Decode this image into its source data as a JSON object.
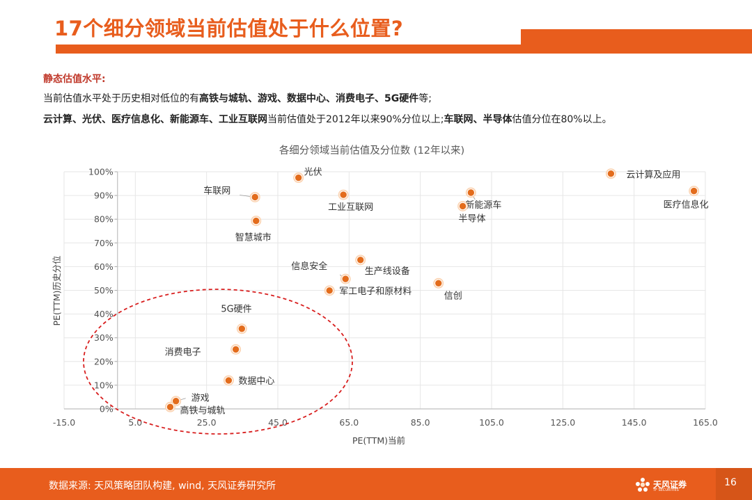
{
  "header": {
    "title": "17个细分领域当前估值处于什么位置?"
  },
  "summary": {
    "section_label": "静态估值水平:",
    "line1": [
      {
        "text": "当前估值水平处于历史相对低位的有",
        "bold": false
      },
      {
        "text": "高铁与城轨、游戏、数据中心、消费电子、5G硬件",
        "bold": true
      },
      {
        "text": "等;",
        "bold": false
      }
    ],
    "line2": [
      {
        "text": "云计算、光伏、医疗信息化、新能源车、工业互联网",
        "bold": true
      },
      {
        "text": "当前估值处于2012年以来90%分位以上;",
        "bold": false
      },
      {
        "text": "车联网、半导体",
        "bold": true
      },
      {
        "text": "估值分位在80%以上。",
        "bold": false
      }
    ]
  },
  "chart_data": {
    "type": "scatter",
    "title": "各细分领域当前估值及分位数 (12年以来)",
    "xlabel": "PE(TTM)当前",
    "ylabel": "PE(TTM)历史分位",
    "xlim": [
      -15,
      165
    ],
    "ylim": [
      0,
      100
    ],
    "x_ticks": [
      "-15.0",
      "5.0",
      "25.0",
      "45.0",
      "65.0",
      "85.0",
      "105.0",
      "125.0",
      "145.0",
      "165.0"
    ],
    "y_ticks": [
      "0%",
      "10%",
      "20%",
      "30%",
      "40%",
      "50%",
      "60%",
      "70%",
      "80%",
      "90%",
      "100%"
    ],
    "grid": true,
    "marker_color": "#e36c1c",
    "annotation_color": "#d81e1e",
    "points": [
      {
        "label": "光伏",
        "x": 50.8,
        "y": 97.5
      },
      {
        "label": "云计算及应用",
        "x": 138.5,
        "y": 99.2
      },
      {
        "label": "车联网",
        "x": 38.6,
        "y": 89.3
      },
      {
        "label": "工业互联网",
        "x": 63.4,
        "y": 90.3
      },
      {
        "label": "新能源车",
        "x": 99.2,
        "y": 91.2
      },
      {
        "label": "医疗信息化",
        "x": 161.8,
        "y": 91.9
      },
      {
        "label": "半导体",
        "x": 96.9,
        "y": 85.5
      },
      {
        "label": "智慧城市",
        "x": 38.9,
        "y": 79.3
      },
      {
        "label": "生产线设备",
        "x": 68.2,
        "y": 62.8
      },
      {
        "label": "信息安全",
        "x": 64.0,
        "y": 54.8
      },
      {
        "label": "信创",
        "x": 90.1,
        "y": 53.0
      },
      {
        "label": "军工电子和原材料",
        "x": 59.5,
        "y": 49.9
      },
      {
        "label": "5G硬件",
        "x": 34.9,
        "y": 33.8
      },
      {
        "label": "消费电子",
        "x": 33.2,
        "y": 25.1
      },
      {
        "label": "数据中心",
        "x": 31.2,
        "y": 12.0
      },
      {
        "label": "游戏",
        "x": 16.4,
        "y": 3.3
      },
      {
        "label": "高铁与城轨",
        "x": 14.8,
        "y": 0.8
      }
    ]
  },
  "footer": {
    "source": "数据来源: 天风策略团队构建, wind, 天风证券研究所",
    "logo_text": "天风证券",
    "logo_sub": "TF SECURITIES",
    "page_number": "16"
  }
}
